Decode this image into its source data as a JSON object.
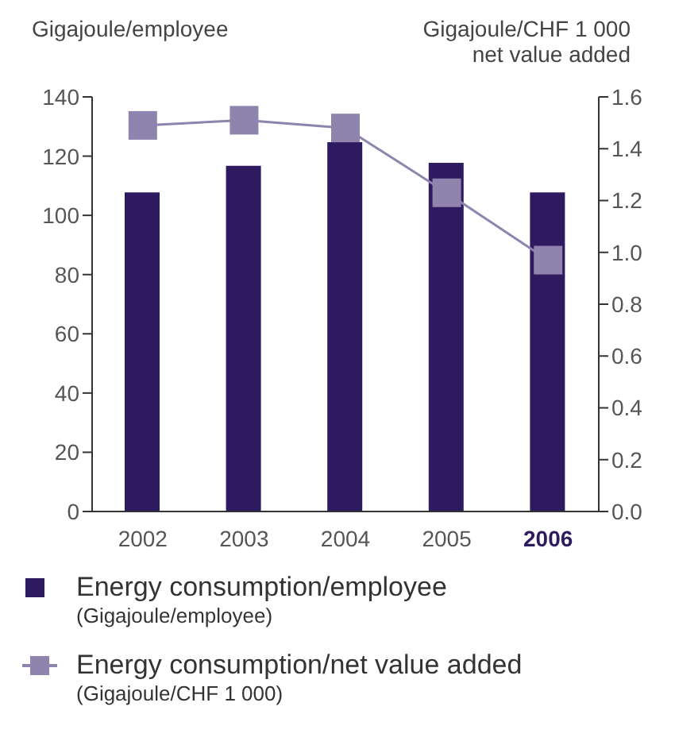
{
  "chart_data": {
    "type": "bar",
    "categories": [
      "2002",
      "2003",
      "2004",
      "2005",
      "2006"
    ],
    "series": [
      {
        "name": "Energy consumption/employee\n(Gigajoule/employee)",
        "color": "#2e1a5e",
        "values": [
          108,
          117,
          125,
          118,
          108
        ]
      },
      {
        "name": "Energy consumption/net value added\n(Gigajoule/CHF 1 000)",
        "type": "line",
        "axis": "y2",
        "color": "#8e84ad",
        "marker": "square",
        "values": [
          1.49,
          1.51,
          1.48,
          1.23,
          0.97
        ]
      }
    ],
    "ylabel": "Gigajoule/employee",
    "y2label": "Gigajoule/CHF 1 000\nnet value added",
    "ylim": [
      0,
      140
    ],
    "yticks": [
      0,
      20,
      40,
      60,
      80,
      100,
      120,
      140
    ],
    "y2lim": [
      0,
      1.6
    ],
    "y2ticks": [
      {
        "value": 0,
        "label": "0.0"
      },
      {
        "value": 0.2,
        "label": "0.2"
      },
      {
        "value": 0.4,
        "label": "0.4"
      },
      {
        "value": 0.6,
        "label": "0.6"
      },
      {
        "value": 0.8,
        "label": "0.8"
      },
      {
        "value": 1,
        "label": "1.0"
      },
      {
        "value": 1.2,
        "label": "1.2"
      },
      {
        "value": 1.4,
        "label": "1.4"
      },
      {
        "value": 1.6,
        "label": "1.6"
      }
    ],
    "grid": false,
    "legend": "bottom"
  }
}
